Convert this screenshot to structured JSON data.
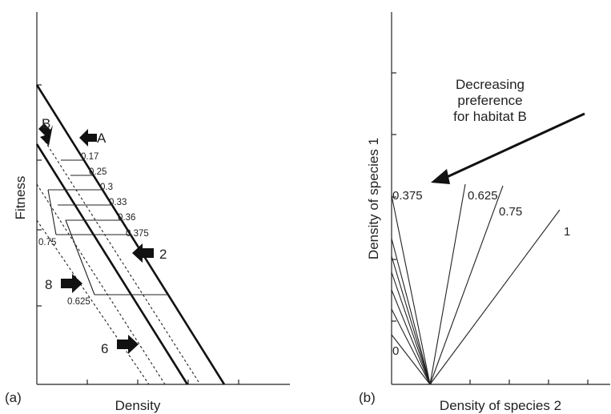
{
  "panel_a": {
    "panel_label": "(a)",
    "x_axis_label": "Density",
    "y_axis_label": "Fitness",
    "habitat_labels": {
      "a": "A",
      "b": "B"
    },
    "line_labels": [
      "0.17",
      "0.25",
      "0.3",
      "0.33",
      "0.36",
      "0.375",
      "0.75",
      "0.625"
    ],
    "arrow_labels": {
      "two": "2",
      "six": "6",
      "eight": "8"
    }
  },
  "panel_b": {
    "panel_label": "(b)",
    "x_axis_label": "Density of species 2",
    "y_axis_label": "Density of species 1",
    "annotation_lines": [
      "Decreasing",
      "preference",
      "for habitat B"
    ],
    "ray_labels": [
      "0.375",
      "0.625",
      "0.75",
      "1",
      "0"
    ]
  },
  "colors": {
    "ink": "#111111",
    "background": "#ffffff"
  }
}
